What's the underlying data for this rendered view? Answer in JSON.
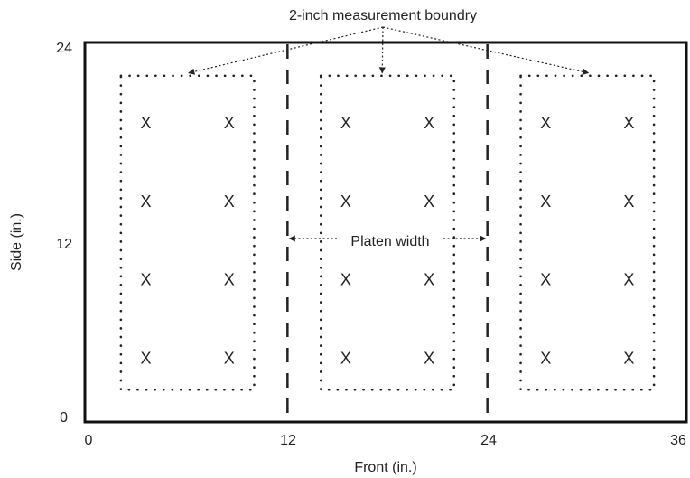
{
  "title": "2-inch measurement boundry",
  "axes": {
    "x_label": "Front (in.)",
    "y_label": "Side (in.)",
    "x_ticks": [
      "0",
      "12",
      "24",
      "36"
    ],
    "y_ticks": [
      "0",
      "12",
      "24"
    ]
  },
  "platen_label": "Platen width",
  "point_marker": "X",
  "colors": {
    "ink": "#222222",
    "frame": "#111111",
    "background": "#ffffff"
  },
  "chart_data": {
    "type": "scatter",
    "xlim": [
      0,
      36
    ],
    "ylim": [
      0,
      24
    ],
    "platen_edges_x": [
      12,
      24
    ],
    "regions": [
      {
        "x": [
          2,
          10
        ],
        "y": [
          2,
          22
        ]
      },
      {
        "x": [
          14,
          22
        ],
        "y": [
          2,
          22
        ]
      },
      {
        "x": [
          26,
          34
        ],
        "y": [
          2,
          22
        ]
      }
    ],
    "points_x": [
      3.5,
      8.5,
      15.5,
      20.5,
      27.5,
      32.5
    ],
    "points_y": [
      4,
      9,
      14,
      19
    ]
  }
}
